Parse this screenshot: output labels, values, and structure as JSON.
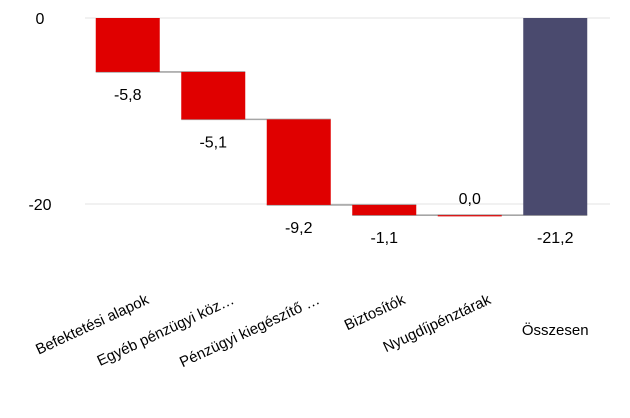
{
  "chart_data": {
    "type": "waterfall",
    "categories": [
      "Befektetési alapok",
      "Egyéb pénzügyi köz…",
      "Pénzügyi kiegészítő …",
      "Biztosítók",
      "Nyugdíjpénztárak",
      "Összesen"
    ],
    "values": [
      -5.8,
      -5.1,
      -9.2,
      -1.1,
      0.0,
      -21.2
    ],
    "data_labels": [
      "-5,8",
      "-5,1",
      "-9,2",
      "-1,1",
      "0,0",
      "-21,2"
    ],
    "is_total": [
      false,
      false,
      false,
      false,
      false,
      true
    ],
    "y_ticks": [
      0,
      -20
    ],
    "y_tick_labels": [
      "0",
      "-20"
    ],
    "ylim": [
      -22,
      0
    ],
    "grid": true,
    "colors": {
      "decrease": "#E00000",
      "total": "#4A4A6E",
      "connector": "#A6A6A6",
      "grid": "#E3E3E3"
    }
  }
}
